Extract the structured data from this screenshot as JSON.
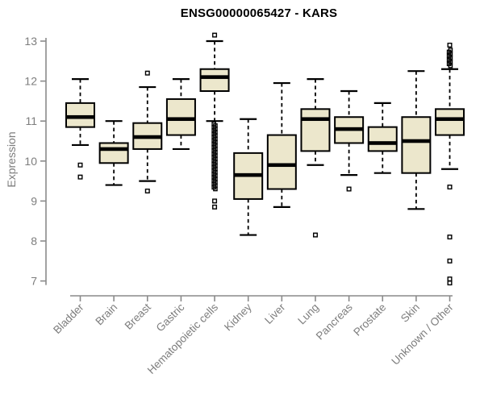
{
  "page": {
    "background": "#ffffff"
  },
  "chart_data": {
    "type": "boxplot",
    "title": "ENSG00000065427 - KARS",
    "xlabel": "",
    "ylabel": "Expression",
    "ylim": [
      7,
      13
    ],
    "yticks": [
      7,
      8,
      9,
      10,
      11,
      12,
      13
    ],
    "grid": false,
    "legend": false,
    "categories": [
      "Bladder",
      "Brain",
      "Breast",
      "Gastric",
      "Hematopoietic cells",
      "Kidney",
      "Liver",
      "Lung",
      "Pancreas",
      "Prostate",
      "Skin",
      "Unknown / Other"
    ],
    "boxes": [
      {
        "whisker_low": 10.4,
        "q1": 10.85,
        "median": 11.1,
        "q3": 11.45,
        "whisker_high": 12.05,
        "outliers_low": [
          9.9,
          9.6
        ],
        "outliers_high": []
      },
      {
        "whisker_low": 9.4,
        "q1": 9.95,
        "median": 10.3,
        "q3": 10.45,
        "whisker_high": 11.0,
        "outliers_low": [],
        "outliers_high": []
      },
      {
        "whisker_low": 9.5,
        "q1": 10.3,
        "median": 10.6,
        "q3": 10.95,
        "whisker_high": 11.85,
        "outliers_low": [
          9.25
        ],
        "outliers_high": [
          12.2
        ]
      },
      {
        "whisker_low": 10.3,
        "q1": 10.65,
        "median": 11.05,
        "q3": 11.55,
        "whisker_high": 12.05,
        "outliers_low": [],
        "outliers_high": []
      },
      {
        "whisker_low": 11.0,
        "q1": 11.75,
        "median": 12.1,
        "q3": 12.3,
        "whisker_high": 13.0,
        "outliers_low": [
          9.0,
          8.85
        ],
        "outliers_high": [
          13.15
        ],
        "outlier_stack_low": {
          "from": 9.3,
          "to": 10.93,
          "count": 40
        }
      },
      {
        "whisker_low": 8.15,
        "q1": 9.05,
        "median": 9.65,
        "q3": 10.2,
        "whisker_high": 11.05,
        "outliers_low": [],
        "outliers_high": []
      },
      {
        "whisker_low": 8.85,
        "q1": 9.3,
        "median": 9.9,
        "q3": 10.65,
        "whisker_high": 11.95,
        "outliers_low": [],
        "outliers_high": []
      },
      {
        "whisker_low": 9.9,
        "q1": 10.25,
        "median": 11.05,
        "q3": 11.3,
        "whisker_high": 12.05,
        "outliers_low": [
          8.15
        ],
        "outliers_high": []
      },
      {
        "whisker_low": 9.65,
        "q1": 10.45,
        "median": 10.8,
        "q3": 11.1,
        "whisker_high": 11.75,
        "outliers_low": [
          9.3
        ],
        "outliers_high": []
      },
      {
        "whisker_low": 9.7,
        "q1": 10.25,
        "median": 10.45,
        "q3": 10.85,
        "whisker_high": 11.45,
        "outliers_low": [],
        "outliers_high": []
      },
      {
        "whisker_low": 8.8,
        "q1": 9.7,
        "median": 10.5,
        "q3": 11.1,
        "whisker_high": 12.25,
        "outliers_low": [],
        "outliers_high": []
      },
      {
        "whisker_low": 9.8,
        "q1": 10.65,
        "median": 11.05,
        "q3": 11.3,
        "whisker_high": 12.3,
        "outliers_low": [
          9.35,
          8.1,
          7.5,
          7.05,
          6.95
        ],
        "outliers_high": [
          12.9
        ],
        "outlier_stack_high": {
          "from": 12.38,
          "to": 12.78,
          "count": 9
        }
      }
    ],
    "colors": {
      "box_fill": "#ece7cc",
      "box_border": "#000000",
      "median": "#000000",
      "whisker": "#000000",
      "outlier": "#000000",
      "axis": "#8a8a8a",
      "axis_text": "#7d7d7d",
      "title_text": "#000000",
      "background": "#ffffff"
    }
  }
}
